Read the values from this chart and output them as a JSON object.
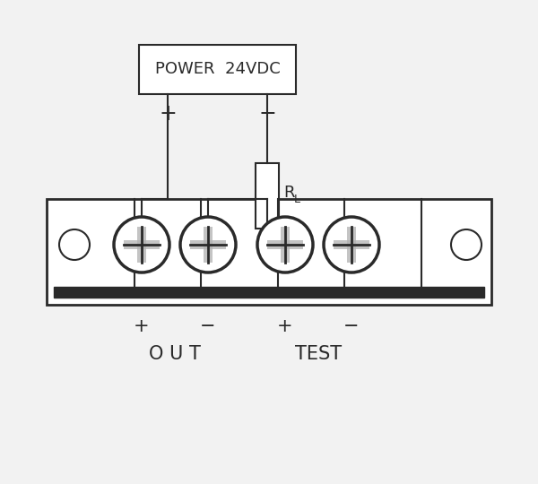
{
  "bg_color": "#f2f2f2",
  "line_color": "#2a2a2a",
  "box_color": "#ffffff",
  "title": "POWER  24VDC",
  "resistor_label": "R",
  "resistor_subscript": "L",
  "terminal_signs": [
    "+",
    "−",
    "+",
    "−"
  ],
  "group_labels": [
    "O U T",
    "TEST"
  ],
  "figsize": [
    6.0,
    5.4
  ],
  "dpi": 100
}
